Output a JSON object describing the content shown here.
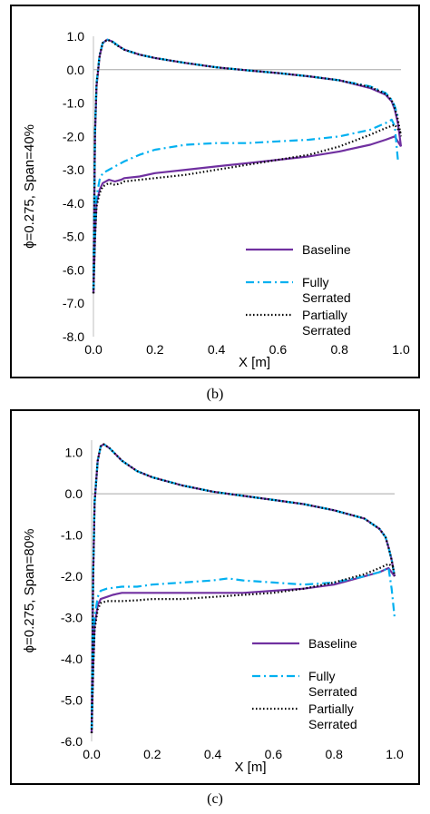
{
  "chart_data": [
    {
      "panel": "b",
      "caption": "(b)",
      "type": "line",
      "xlabel": "X [m]",
      "ylabel": "ϕ=0.275, Span=40%",
      "xlim": [
        0,
        1
      ],
      "ylim": [
        -8,
        1
      ],
      "xticks": [
        0.0,
        0.2,
        0.4,
        0.6,
        0.8,
        1.0
      ],
      "xtick_labels": [
        "0.0",
        "0.2",
        "0.4",
        "0.6",
        "0.8",
        "1.0"
      ],
      "yticks": [
        1,
        0,
        -1,
        -2,
        -3,
        -4,
        -5,
        -6,
        -7,
        -8
      ],
      "ytick_labels": [
        "1.0",
        "0.0",
        "-1.0",
        "-2.0",
        "-3.0",
        "-4.0",
        "-5.0",
        "-6.0",
        "-7.0",
        "-8.0"
      ],
      "legend_position": "bottom-right",
      "series": [
        {
          "name": "Baseline",
          "color": "#7030A0",
          "style": "solid",
          "upper": {
            "x": [
              0.0,
              0.005,
              0.01,
              0.02,
              0.03,
              0.045,
              0.06,
              0.08,
              0.1,
              0.15,
              0.2,
              0.3,
              0.4,
              0.5,
              0.6,
              0.7,
              0.8,
              0.9,
              0.95,
              0.97,
              0.98,
              0.99,
              1.0
            ],
            "y": [
              -6.7,
              -2.0,
              -0.5,
              0.4,
              0.8,
              0.9,
              0.85,
              0.72,
              0.6,
              0.45,
              0.35,
              0.2,
              0.07,
              -0.02,
              -0.1,
              -0.2,
              -0.32,
              -0.55,
              -0.75,
              -0.95,
              -1.2,
              -1.6,
              -2.3
            ]
          },
          "lower": {
            "x": [
              0.0,
              0.005,
              0.01,
              0.02,
              0.03,
              0.05,
              0.07,
              0.09,
              0.1,
              0.15,
              0.2,
              0.3,
              0.4,
              0.5,
              0.6,
              0.7,
              0.8,
              0.9,
              0.95,
              0.98,
              1.0
            ],
            "y": [
              -6.7,
              -5.0,
              -4.0,
              -3.6,
              -3.4,
              -3.3,
              -3.35,
              -3.3,
              -3.25,
              -3.2,
              -3.1,
              -3.0,
              -2.9,
              -2.8,
              -2.7,
              -2.6,
              -2.45,
              -2.25,
              -2.1,
              -2.0,
              -2.3
            ]
          }
        },
        {
          "name": "Fully Serrated",
          "color": "#00B0F0",
          "style": "dashdot",
          "upper": {
            "x": [
              0.0,
              0.005,
              0.01,
              0.02,
              0.03,
              0.045,
              0.06,
              0.08,
              0.1,
              0.15,
              0.2,
              0.3,
              0.4,
              0.5,
              0.6,
              0.7,
              0.8,
              0.9,
              0.95,
              0.97,
              0.98,
              0.99
            ],
            "y": [
              -6.6,
              -1.8,
              -0.4,
              0.45,
              0.8,
              0.9,
              0.86,
              0.72,
              0.6,
              0.45,
              0.35,
              0.2,
              0.07,
              -0.02,
              -0.1,
              -0.2,
              -0.32,
              -0.5,
              -0.7,
              -0.9,
              -1.1,
              -1.4
            ]
          },
          "lower": {
            "x": [
              0.0,
              0.005,
              0.01,
              0.02,
              0.03,
              0.05,
              0.07,
              0.1,
              0.15,
              0.2,
              0.3,
              0.4,
              0.5,
              0.6,
              0.7,
              0.8,
              0.9,
              0.95,
              0.97,
              0.98,
              0.99
            ],
            "y": [
              -6.6,
              -4.8,
              -3.8,
              -3.3,
              -3.1,
              -3.0,
              -2.9,
              -2.75,
              -2.55,
              -2.4,
              -2.25,
              -2.2,
              -2.2,
              -2.15,
              -2.1,
              -2.0,
              -1.8,
              -1.6,
              -1.5,
              -1.7,
              -2.7
            ]
          }
        },
        {
          "name": "Partially Serrated",
          "color": "#000000",
          "style": "dotted",
          "upper": {
            "x": [
              0.0,
              0.005,
              0.01,
              0.02,
              0.03,
              0.045,
              0.06,
              0.08,
              0.1,
              0.15,
              0.2,
              0.3,
              0.4,
              0.5,
              0.6,
              0.7,
              0.8,
              0.9,
              0.95,
              0.97,
              0.98,
              0.99,
              1.0
            ],
            "y": [
              -6.7,
              -1.9,
              -0.45,
              0.42,
              0.8,
              0.9,
              0.84,
              0.71,
              0.6,
              0.45,
              0.35,
              0.2,
              0.07,
              -0.02,
              -0.1,
              -0.2,
              -0.32,
              -0.52,
              -0.72,
              -0.92,
              -1.15,
              -1.5,
              -2.0
            ]
          },
          "lower": {
            "x": [
              0.0,
              0.005,
              0.01,
              0.02,
              0.03,
              0.05,
              0.07,
              0.09,
              0.1,
              0.15,
              0.2,
              0.3,
              0.4,
              0.5,
              0.6,
              0.7,
              0.8,
              0.9,
              0.95,
              0.98,
              1.0
            ],
            "y": [
              -6.7,
              -5.1,
              -4.1,
              -3.7,
              -3.5,
              -3.4,
              -3.45,
              -3.4,
              -3.35,
              -3.3,
              -3.25,
              -3.15,
              -3.0,
              -2.85,
              -2.7,
              -2.55,
              -2.3,
              -1.95,
              -1.75,
              -1.65,
              -1.9
            ]
          }
        }
      ]
    },
    {
      "panel": "c",
      "caption": "(c)",
      "type": "line",
      "xlabel": "X [m]",
      "ylabel": "ϕ=0.275, Span=80%",
      "xlim": [
        0,
        1
      ],
      "ylim": [
        -6,
        1.3
      ],
      "xticks": [
        0.0,
        0.2,
        0.4,
        0.6,
        0.8,
        1.0
      ],
      "xtick_labels": [
        "0.0",
        "0.2",
        "0.4",
        "0.6",
        "0.8",
        "1.0"
      ],
      "yticks": [
        1,
        0,
        -1,
        -2,
        -3,
        -4,
        -5,
        -6
      ],
      "ytick_labels": [
        "1.0",
        "0.0",
        "-1.0",
        "-2.0",
        "-3.0",
        "-4.0",
        "-5.0",
        "-6.0"
      ],
      "legend_position": "bottom-right",
      "series": [
        {
          "name": "Baseline",
          "color": "#7030A0",
          "style": "solid",
          "upper": {
            "x": [
              0.0,
              0.005,
              0.01,
              0.02,
              0.03,
              0.04,
              0.06,
              0.08,
              0.1,
              0.15,
              0.2,
              0.3,
              0.4,
              0.5,
              0.6,
              0.7,
              0.8,
              0.9,
              0.95,
              0.97,
              0.98,
              0.99,
              1.0
            ],
            "y": [
              -5.8,
              -2.0,
              -0.2,
              0.8,
              1.15,
              1.2,
              1.1,
              0.95,
              0.8,
              0.55,
              0.4,
              0.2,
              0.05,
              -0.05,
              -0.15,
              -0.25,
              -0.4,
              -0.6,
              -0.85,
              -1.05,
              -1.3,
              -1.6,
              -2.0
            ]
          },
          "lower": {
            "x": [
              0.0,
              0.005,
              0.01,
              0.02,
              0.03,
              0.05,
              0.07,
              0.1,
              0.15,
              0.2,
              0.3,
              0.4,
              0.5,
              0.6,
              0.7,
              0.8,
              0.9,
              0.95,
              0.98,
              1.0
            ],
            "y": [
              -5.8,
              -4.2,
              -3.2,
              -2.7,
              -2.55,
              -2.5,
              -2.45,
              -2.4,
              -2.4,
              -2.4,
              -2.4,
              -2.4,
              -2.4,
              -2.35,
              -2.3,
              -2.2,
              -2.0,
              -1.9,
              -1.8,
              -2.0
            ]
          }
        },
        {
          "name": "Fully Serrated",
          "color": "#00B0F0",
          "style": "dashdot",
          "upper": {
            "x": [
              0.0,
              0.005,
              0.01,
              0.02,
              0.03,
              0.04,
              0.06,
              0.08,
              0.1,
              0.15,
              0.2,
              0.3,
              0.4,
              0.5,
              0.6,
              0.7,
              0.8,
              0.9,
              0.95,
              0.97,
              0.98,
              0.99,
              1.0
            ],
            "y": [
              -5.7,
              -1.9,
              -0.2,
              0.8,
              1.15,
              1.2,
              1.1,
              0.95,
              0.8,
              0.55,
              0.4,
              0.2,
              0.05,
              -0.05,
              -0.15,
              -0.25,
              -0.4,
              -0.6,
              -0.85,
              -1.05,
              -1.3,
              -1.6,
              -2.0
            ]
          },
          "lower": {
            "x": [
              0.0,
              0.005,
              0.01,
              0.02,
              0.03,
              0.05,
              0.07,
              0.1,
              0.15,
              0.2,
              0.3,
              0.4,
              0.45,
              0.5,
              0.6,
              0.7,
              0.8,
              0.9,
              0.95,
              0.98,
              0.99,
              1.0
            ],
            "y": [
              -5.7,
              -4.0,
              -3.0,
              -2.5,
              -2.35,
              -2.3,
              -2.28,
              -2.25,
              -2.25,
              -2.2,
              -2.15,
              -2.1,
              -2.05,
              -2.1,
              -2.15,
              -2.2,
              -2.15,
              -2.0,
              -1.9,
              -1.8,
              -2.3,
              -3.0
            ]
          }
        },
        {
          "name": "Partially Serrated",
          "color": "#000000",
          "style": "dotted",
          "upper": {
            "x": [
              0.0,
              0.005,
              0.01,
              0.02,
              0.03,
              0.04,
              0.06,
              0.08,
              0.1,
              0.15,
              0.2,
              0.3,
              0.4,
              0.5,
              0.6,
              0.7,
              0.8,
              0.9,
              0.95,
              0.97,
              0.98,
              0.99,
              1.0
            ],
            "y": [
              -5.8,
              -2.0,
              -0.2,
              0.8,
              1.15,
              1.2,
              1.1,
              0.95,
              0.8,
              0.55,
              0.4,
              0.2,
              0.05,
              -0.05,
              -0.15,
              -0.25,
              -0.4,
              -0.6,
              -0.85,
              -1.05,
              -1.3,
              -1.6,
              -2.0
            ]
          },
          "lower": {
            "x": [
              0.0,
              0.005,
              0.01,
              0.02,
              0.03,
              0.05,
              0.07,
              0.1,
              0.15,
              0.2,
              0.3,
              0.4,
              0.5,
              0.6,
              0.7,
              0.8,
              0.9,
              0.95,
              0.98,
              1.0
            ],
            "y": [
              -5.8,
              -4.3,
              -3.3,
              -2.8,
              -2.65,
              -2.6,
              -2.6,
              -2.6,
              -2.58,
              -2.55,
              -2.55,
              -2.5,
              -2.45,
              -2.4,
              -2.3,
              -2.15,
              -1.95,
              -1.8,
              -1.7,
              -1.8
            ]
          }
        }
      ]
    }
  ]
}
